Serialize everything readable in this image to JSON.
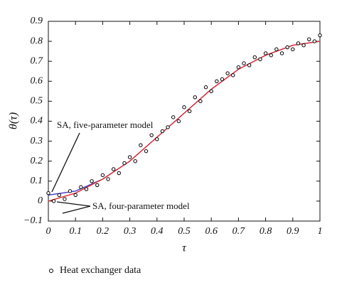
{
  "chart_data": {
    "type": "scatter",
    "xlabel": "τ",
    "ylabel": "θ(τ)",
    "xlim": [
      0,
      1
    ],
    "ylim": [
      -0.1,
      0.9
    ],
    "xticks": [
      0,
      0.1,
      0.2,
      0.3,
      0.4,
      0.5,
      0.6,
      0.7,
      0.8,
      0.9,
      1
    ],
    "yticks": [
      {
        "value": -0.1,
        "label": "−0.1"
      },
      0,
      0.1,
      0.2,
      0.3,
      0.4,
      0.5,
      0.6,
      0.7,
      0.8,
      0.9
    ],
    "annotations": [
      "SA, five-parameter model",
      "SA, four-parameter model"
    ],
    "legend": "bottom",
    "series": [
      {
        "name": "Heat exchanger data",
        "type": "scatter",
        "color": "#000000",
        "x": [
          0,
          0.02,
          0.04,
          0.06,
          0.08,
          0.1,
          0.12,
          0.14,
          0.16,
          0.18,
          0.2,
          0.22,
          0.24,
          0.26,
          0.28,
          0.3,
          0.32,
          0.34,
          0.36,
          0.38,
          0.4,
          0.42,
          0.44,
          0.46,
          0.48,
          0.5,
          0.52,
          0.54,
          0.56,
          0.58,
          0.6,
          0.62,
          0.64,
          0.66,
          0.68,
          0.7,
          0.72,
          0.74,
          0.76,
          0.78,
          0.8,
          0.82,
          0.84,
          0.86,
          0.88,
          0.9,
          0.92,
          0.94,
          0.96,
          0.98,
          1
        ],
        "values": [
          0.04,
          0.0,
          0.03,
          0.01,
          0.05,
          0.03,
          0.07,
          0.06,
          0.1,
          0.08,
          0.13,
          0.11,
          0.16,
          0.14,
          0.19,
          0.22,
          0.2,
          0.28,
          0.25,
          0.33,
          0.31,
          0.35,
          0.37,
          0.42,
          0.4,
          0.47,
          0.45,
          0.52,
          0.5,
          0.57,
          0.55,
          0.6,
          0.61,
          0.64,
          0.63,
          0.67,
          0.69,
          0.68,
          0.72,
          0.71,
          0.74,
          0.73,
          0.76,
          0.74,
          0.77,
          0.76,
          0.79,
          0.78,
          0.81,
          0.8,
          0.83
        ]
      },
      {
        "type": "line",
        "color": "#3b3bc8",
        "x": [
          0,
          0.1,
          0.2,
          0.3,
          0.4,
          0.5,
          0.6,
          0.7,
          0.8,
          0.9,
          1
        ],
        "values": [
          0.03,
          0.05,
          0.11,
          0.2,
          0.32,
          0.44,
          0.56,
          0.66,
          0.73,
          0.78,
          0.8
        ]
      },
      {
        "type": "line",
        "color": "#e03030",
        "x": [
          0,
          0.1,
          0.2,
          0.3,
          0.4,
          0.5,
          0.6,
          0.7,
          0.8,
          0.9,
          1
        ],
        "values": [
          0.0,
          0.04,
          0.11,
          0.2,
          0.32,
          0.44,
          0.56,
          0.66,
          0.73,
          0.78,
          0.8
        ]
      }
    ]
  }
}
